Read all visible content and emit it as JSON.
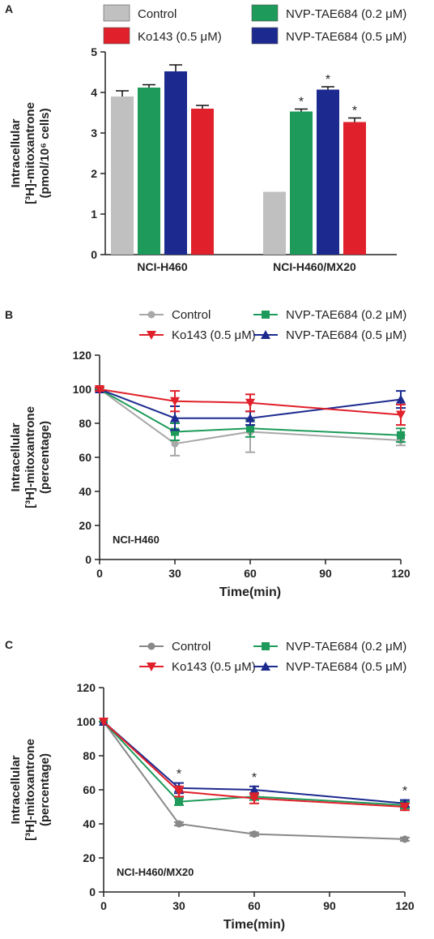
{
  "chart_data": [
    {
      "panel": "A",
      "type": "bar",
      "ylabel_line1": "Intracellular",
      "ylabel_line2": "[³H]-mitoxantrone",
      "ylabel_line3": "(pmol/10⁶ cells)",
      "ylim": [
        0,
        5
      ],
      "yticks": [
        "0",
        "1",
        "2",
        "3",
        "4",
        "5"
      ],
      "categories": [
        "NCI-H460",
        "NCI-H460/MX20"
      ],
      "legend": [
        "Control",
        "NVP-TAE684 (0.2 μM)",
        "Ko143 (0.5 μM)",
        "NVP-TAE684 (0.5 μM)"
      ],
      "series": [
        {
          "name": "Control",
          "color": "#c0c0c0",
          "values": [
            3.9,
            1.55
          ],
          "err": [
            0.14,
            0
          ],
          "star": [
            false,
            false
          ]
        },
        {
          "name": "NVP-TAE684 (0.2 μM)",
          "color": "#1e9b5a",
          "values": [
            4.12,
            3.53
          ],
          "err": [
            0.07,
            0.06
          ],
          "star": [
            false,
            true
          ]
        },
        {
          "name": "NVP-TAE684 (0.5 μM)",
          "color": "#1c2a8f",
          "values": [
            4.52,
            4.07
          ],
          "err": [
            0.16,
            0.07
          ],
          "star": [
            false,
            true
          ]
        },
        {
          "name": "Ko143 (0.5 μM)",
          "color": "#e0202a",
          "values": [
            3.6,
            3.27
          ],
          "err": [
            0.08,
            0.1
          ],
          "star": [
            false,
            true
          ]
        }
      ],
      "star_symbol": "*"
    },
    {
      "panel": "B",
      "type": "line",
      "cell_label": "NCI-H460",
      "xlabel": "Time(min)",
      "ylabel_line1": "Intracellular",
      "ylabel_line2": "[³H]-mitoxantrone",
      "ylabel_line3": "(percentage)",
      "xlim": [
        0,
        120
      ],
      "ylim": [
        0,
        120
      ],
      "xticks": [
        "0",
        "30",
        "60",
        "90",
        "120"
      ],
      "yticks": [
        "0",
        "20",
        "40",
        "60",
        "80",
        "100",
        "120"
      ],
      "legend": [
        "Control",
        "NVP-TAE684 (0.2 μM)",
        "Ko143 (0.5 μM)",
        "NVP-TAE684 (0.5 μM)"
      ],
      "x": [
        0,
        30,
        60,
        120
      ],
      "series": [
        {
          "name": "Control",
          "color": "#a8a8a8",
          "marker": "circle",
          "values": [
            100,
            68,
            75,
            70
          ],
          "err": [
            1,
            7,
            12,
            3
          ]
        },
        {
          "name": "NVP-TAE684 (0.2 μM)",
          "color": "#1e9b5a",
          "marker": "square",
          "values": [
            100,
            75,
            77,
            73
          ],
          "err": [
            1,
            5,
            5,
            4
          ]
        },
        {
          "name": "NVP-TAE684 (0.5 μM)",
          "color": "#1c2a8f",
          "marker": "triangle-up",
          "values": [
            100,
            83,
            83,
            94
          ],
          "err": [
            1,
            7,
            4,
            5
          ]
        },
        {
          "name": "Ko143 (0.5 μM)",
          "color": "#e0202a",
          "marker": "triangle-down",
          "values": [
            100,
            93,
            92,
            85
          ],
          "err": [
            1,
            6,
            5,
            6
          ]
        }
      ]
    },
    {
      "panel": "C",
      "type": "line",
      "cell_label": "NCI-H460/MX20",
      "xlabel": "Time(min)",
      "ylabel_line1": "Intracellular",
      "ylabel_line2": "[³H]-mitoxantrone",
      "ylabel_line3": "(percentage)",
      "xlim": [
        0,
        120
      ],
      "ylim": [
        0,
        120
      ],
      "xticks": [
        "0",
        "30",
        "60",
        "90",
        "120"
      ],
      "yticks": [
        "0",
        "20",
        "40",
        "60",
        "80",
        "100",
        "120"
      ],
      "legend": [
        "Control",
        "NVP-TAE684 (0.2 μM)",
        "Ko143 (0.5 μM)",
        "NVP-TAE684 (0.5 μM)"
      ],
      "x": [
        0,
        30,
        60,
        120
      ],
      "series": [
        {
          "name": "Control",
          "color": "#888888",
          "marker": "circle",
          "values": [
            100,
            40,
            34,
            31
          ],
          "err": [
            0,
            1,
            1,
            1
          ]
        },
        {
          "name": "NVP-TAE684 (0.2 μM)",
          "color": "#1e9b5a",
          "marker": "square",
          "values": [
            100,
            53,
            56,
            51
          ],
          "err": [
            0,
            2,
            2,
            2
          ]
        },
        {
          "name": "NVP-TAE684 (0.5 μM)",
          "color": "#1c2a8f",
          "marker": "triangle-up",
          "values": [
            100,
            61,
            60,
            52
          ],
          "err": [
            0,
            3,
            2,
            2
          ]
        },
        {
          "name": "Ko143 (0.5 μM)",
          "color": "#e0202a",
          "marker": "triangle-down",
          "values": [
            100,
            59,
            55,
            50
          ],
          "err": [
            0,
            3,
            3,
            2
          ]
        }
      ],
      "star_x": [
        30,
        60,
        120
      ],
      "star_symbol": "*"
    }
  ]
}
